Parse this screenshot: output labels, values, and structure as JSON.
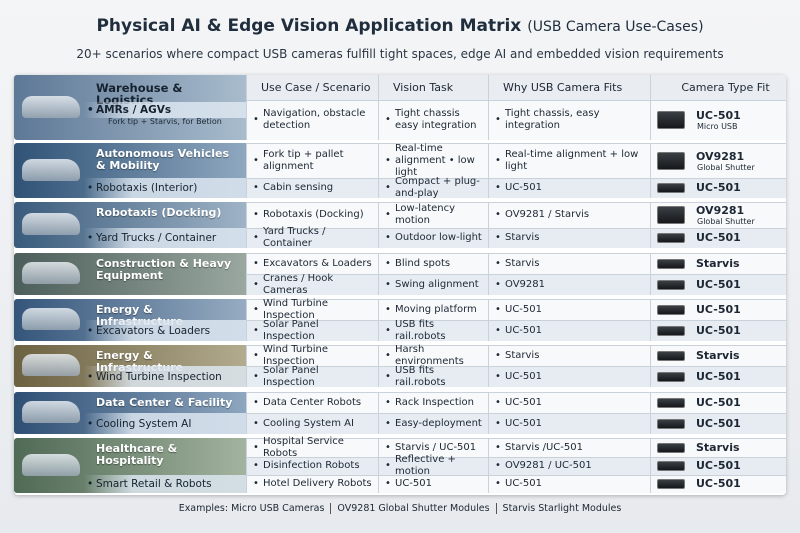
{
  "header": {
    "title": "Physical AI & Edge Vision Application Matrix",
    "title_note": "(USB Camera Use-Cases)",
    "subtitle": "20+ scenarios where compact USB cameras fulfill tight spaces, edge AI and embedded vision requirements"
  },
  "columns": [
    "Use Case / Scenario",
    "Vision Task",
    "Why USB Camera Fits",
    "Camera Type Fit"
  ],
  "groups": [
    {
      "title": "Warehouse & Logistics",
      "sub": "AMRs / AGVs",
      "detail": "Fork tip + Starvis, for Betion",
      "rows": [
        {
          "use": "Navigation, obstacle detection",
          "task": "Tight chassis easy integration",
          "why": "Tight chassis, easy integration",
          "camera": "UC-501",
          "camera_note": "Micro USB"
        }
      ]
    },
    {
      "title": "Autonomous Vehicles & Mobility",
      "sub": "Robotaxis (Interior)",
      "rows": [
        {
          "use": "Fork tip + pallet alignment",
          "task": "Real-time alignment • low light",
          "why": "Real-time alignment + low light",
          "camera": "OV9281",
          "camera_note": "Global Shutter"
        },
        {
          "use": "Cabin sensing",
          "task": "Compact + plug-and-play",
          "why": "UC-501",
          "camera": "UC-501"
        }
      ]
    },
    {
      "title": "Robotaxis (Docking)",
      "sub": "Yard Trucks / Container",
      "rows": [
        {
          "use": "Robotaxis (Docking)",
          "task": "Low-latency motion",
          "why": "OV9281 / Starvis",
          "camera": "OV9281",
          "camera_note": "Global Shutter"
        },
        {
          "use": "Yard Trucks / Container",
          "task": "Outdoor low-light",
          "why": "Starvis",
          "camera": "UC-501"
        }
      ]
    },
    {
      "title": "Construction & Heavy Equipment",
      "rows": [
        {
          "use": "Excavators & Loaders",
          "task": "Blind spots",
          "why": "Starvis",
          "camera": "Starvis"
        },
        {
          "use": "Cranes / Hook Cameras",
          "task": "Swing alignment",
          "why": "OV9281",
          "camera": "UC-501"
        }
      ]
    },
    {
      "title": "Energy & Infrastructure",
      "sub": "Excavators & Loaders",
      "rows": [
        {
          "use": "Wind Turbine Inspection",
          "task": "Moving platform",
          "why": "UC-501",
          "camera": "UC-501"
        },
        {
          "use": "Solar Panel Inspection",
          "task": "USB fits rail.robots",
          "why": "UC-501",
          "camera": "UC-501"
        }
      ]
    },
    {
      "title": "Energy & Infrastructure",
      "sub": "Wind Turbine Inspection",
      "rows": [
        {
          "use": "Wind Turbine Inspection",
          "task": "Harsh environments",
          "why": "Starvis",
          "camera": "Starvis"
        },
        {
          "use": "Solar Panel Inspection",
          "task": "USB fits rail.robots",
          "why": "UC-501",
          "camera": "UC-501"
        }
      ]
    },
    {
      "title": "Data Center & Facility",
      "sub": "Cooling System AI",
      "rows": [
        {
          "use": "Data Center Robots",
          "task": "Rack Inspection",
          "why": "UC-501",
          "camera": "UC-501"
        },
        {
          "use": "Cooling System AI",
          "task": "Easy-deployment",
          "why": "UC-501",
          "camera": "UC-501"
        }
      ]
    },
    {
      "title": "Healthcare & Hospitality",
      "sub": "Smart Retail & Robots",
      "rows": [
        {
          "use": "Hospital Service Robots",
          "task": "Starvis / UC-501",
          "why": "Starvis /UC-501",
          "camera": "Starvis"
        },
        {
          "use": "Disinfection Robots",
          "task": "Reflective + motion",
          "why": "OV9281 / UC-501",
          "camera": "UC-501"
        },
        {
          "use": "Hotel Delivery Robots",
          "task": "UC-501",
          "why": "UC-501",
          "camera": "UC-501"
        }
      ]
    }
  ],
  "footer": [
    "Examples: Micro USB Cameras",
    "OV9281 Global Shutter Modules",
    "Starvis Starlight Modules"
  ]
}
